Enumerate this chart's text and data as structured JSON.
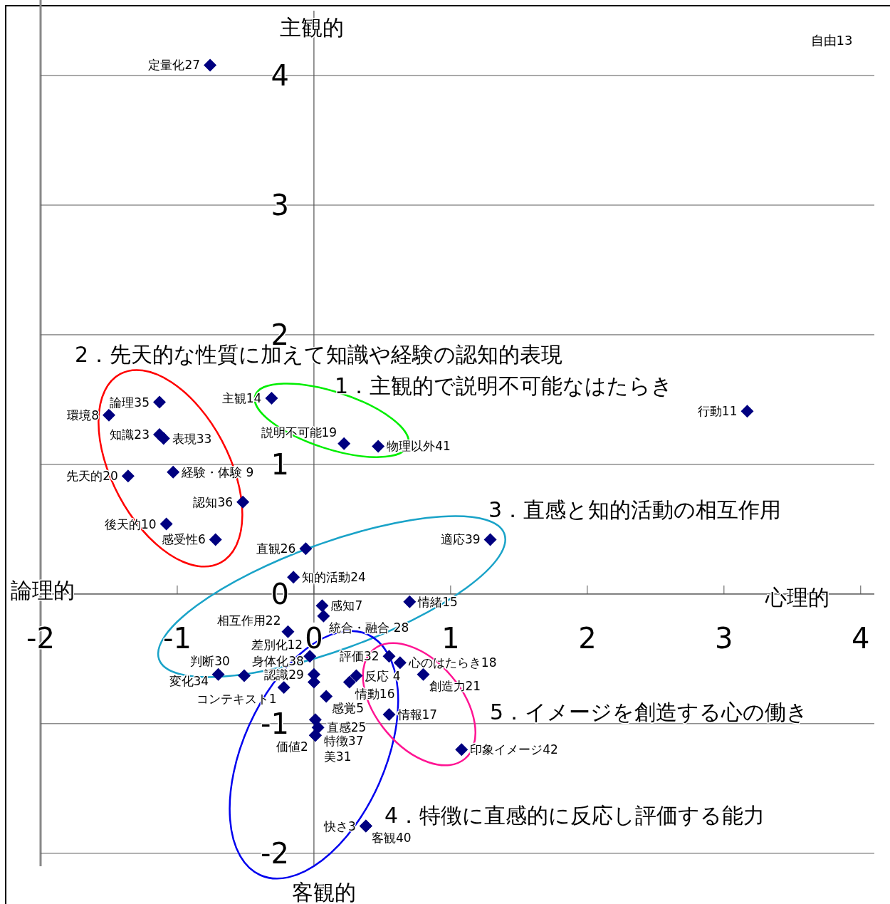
{
  "chart_data": {
    "type": "scatter",
    "xlim": [
      -2,
      4.1
    ],
    "ylim": [
      -2.1,
      4.5
    ],
    "xticks": [
      -2,
      -1,
      0,
      1,
      2,
      3,
      4
    ],
    "yticks": [
      -2,
      -1,
      0,
      1,
      2,
      3,
      4
    ],
    "grid": "y",
    "marker": "diamond",
    "series": [
      {
        "color": "#000080",
        "x": [
          -0.76,
          3.17,
          -1.13,
          -1.5,
          -1.13,
          -1.1,
          -1.03,
          -1.36,
          -0.52,
          -1.08,
          -0.72,
          -0.31,
          0.22,
          0.47,
          1.29,
          -0.06,
          -0.15,
          0.7,
          0.06,
          0.07,
          -0.19,
          -0.03,
          0.55,
          0.63,
          0.8,
          -0.7,
          -0.51,
          0.0,
          0.0,
          0.31,
          0.26,
          -0.22,
          0.09,
          0.55,
          0.01,
          0.03,
          0.01,
          0.01,
          1.08,
          0.38,
          0.38
        ],
        "values": [
          4.08,
          1.41,
          1.48,
          1.38,
          1.23,
          1.2,
          0.94,
          0.91,
          0.71,
          0.54,
          0.42,
          1.51,
          1.16,
          1.14,
          0.42,
          0.35,
          0.13,
          -0.06,
          -0.09,
          -0.17,
          -0.29,
          -0.48,
          -0.48,
          -0.53,
          -0.62,
          -0.62,
          -0.63,
          -0.62,
          -0.68,
          -0.63,
          -0.68,
          -0.72,
          -0.79,
          -0.93,
          -0.97,
          -1.03,
          -1.09,
          -1.09,
          -1.2,
          -1.79,
          -1.79
        ],
        "value_labels": [
          "定量化27",
          "行動11",
          "論理35",
          "環境8",
          "知識23",
          "表現33",
          "経験・体験 9",
          "先天的20",
          "認知36",
          "後天的10",
          "感受性6",
          "主観14",
          "説明不可能19",
          "物理以外41",
          "適応39",
          "直観26",
          "知的活動24",
          "情緒15",
          "感知7",
          "統合・融合 28",
          "相互作用22",
          "差別化12",
          "評価32",
          "心のはたらき18",
          "創造力21",
          "変化34",
          "判断30",
          "認識29",
          "身体化38",
          "反応 4",
          "情動16",
          "コンテキスト1",
          "感覚5",
          "情報17",
          "特徴37",
          "直感25",
          "価値2",
          "美31",
          "印象イメージ42",
          "快さ3",
          "客観40"
        ]
      }
    ],
    "annotations": [
      "主観的",
      "客観的",
      "論理的",
      "心理的",
      "自由13",
      "1．主観的で説明不可能なはたらき",
      "2．先天的な性質に加えて知識や経験の認知的表現",
      "3．直感と知的活動の相互作用",
      "4．特徴に直感的に反応し評価する能力",
      "5．イメージを創造する心の働き"
    ]
  }
}
